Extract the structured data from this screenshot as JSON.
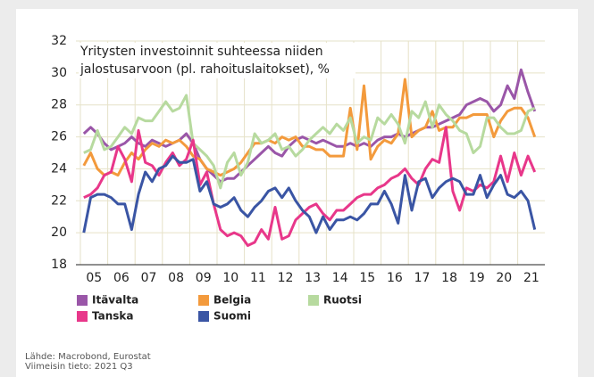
{
  "chart_data": {
    "type": "line",
    "title": [
      "Yritysten investoinnit suhteessa niiden",
      "jalostusarvoon (pl. rahoituslaitokset), %"
    ],
    "categories": [
      "05",
      null,
      null,
      null,
      "06",
      null,
      null,
      null,
      "07",
      null,
      null,
      null,
      "08",
      null,
      null,
      null,
      "09",
      null,
      null,
      null,
      "10",
      null,
      null,
      null,
      "11",
      null,
      null,
      null,
      "12",
      null,
      null,
      null,
      "13",
      null,
      null,
      null,
      "14",
      null,
      null,
      null,
      "15",
      null,
      null,
      null,
      "16",
      null,
      null,
      null,
      "17",
      null,
      null,
      null,
      "18",
      null,
      null,
      null,
      "19",
      null,
      null,
      null,
      "20",
      null,
      null,
      null,
      "21",
      null,
      null
    ],
    "ylim": [
      18,
      32
    ],
    "yticks": [
      18,
      20,
      22,
      24,
      26,
      28,
      30,
      32
    ],
    "grid": true,
    "series": [
      {
        "name": "Itävalta",
        "color": "#9a56a8",
        "values": [
          26.2,
          26.6,
          26.2,
          25.6,
          25.2,
          25.4,
          25.6,
          26,
          25.6,
          25.4,
          25.8,
          25.6,
          25.4,
          25.6,
          25.8,
          26.2,
          25.6,
          24.6,
          24,
          23.6,
          23.2,
          23.4,
          23.4,
          23.8,
          24.2,
          24.6,
          25,
          25.4,
          25,
          24.8,
          25.4,
          25.8,
          26,
          25.8,
          25.6,
          25.8,
          25.6,
          25.4,
          25.4,
          25.6,
          25.4,
          25.6,
          25.4,
          25.8,
          26,
          26,
          26.2,
          26,
          26.2,
          26.4,
          26.6,
          26.6,
          26.8,
          27,
          27.2,
          27.4,
          28,
          28.2,
          28.4,
          28.2,
          27.6,
          28,
          29.2,
          28.4,
          30.2,
          28.8,
          27.6
        ]
      },
      {
        "name": "Belgia",
        "color": "#f39a3c",
        "values": [
          24.2,
          25,
          24,
          23.6,
          23.8,
          23.6,
          24.4,
          25,
          24.6,
          25.2,
          25.6,
          25.4,
          25.8,
          25.6,
          25.8,
          25.4,
          24.8,
          24.6,
          24,
          23.8,
          23.6,
          23.8,
          24,
          24.4,
          25,
          25.6,
          25.6,
          25.8,
          25.6,
          26,
          25.8,
          26,
          25.4,
          25.4,
          25.2,
          25.2,
          24.8,
          24.8,
          24.8,
          27.8,
          25.2,
          29.2,
          24.6,
          25.4,
          25.8,
          25.6,
          26.2,
          29.6,
          26,
          26.4,
          26.6,
          27.6,
          26.4,
          26.6,
          26.6,
          27.2,
          27.2,
          27.4,
          27.4,
          27.4,
          26,
          27,
          27.6,
          27.8,
          27.8,
          27.2,
          26
        ]
      },
      {
        "name": "Ruotsi",
        "color": "#b7da9f",
        "values": [
          25,
          25.2,
          26.4,
          25.2,
          25.4,
          26,
          26.6,
          26.2,
          27.2,
          27,
          27,
          27.6,
          28.2,
          27.6,
          27.8,
          28.6,
          25.6,
          25.2,
          24.8,
          24.2,
          22.8,
          24.4,
          25,
          23.6,
          24.4,
          26.2,
          25.6,
          25.8,
          26.2,
          25.2,
          25.4,
          24.8,
          25.2,
          25.8,
          26.2,
          26.6,
          26.2,
          26.8,
          26.4,
          27.2,
          25.6,
          26,
          25.8,
          27.2,
          26.8,
          27.4,
          26.8,
          25.6,
          27.6,
          27.2,
          28.2,
          26.6,
          28,
          27.4,
          27,
          26.4,
          26.2,
          25,
          25.4,
          27.2,
          27.2,
          26.6,
          26.2,
          26.2,
          26.4,
          27.6,
          27.8
        ]
      },
      {
        "name": "Tanska",
        "color": "#e8378a",
        "values": [
          22.2,
          22.4,
          22.8,
          23.6,
          23.8,
          25.4,
          24.6,
          23.2,
          26.4,
          24.4,
          24.2,
          23.6,
          24.4,
          25,
          24.2,
          24.6,
          25.8,
          23,
          23.8,
          21.8,
          20.2,
          19.8,
          20,
          19.8,
          19.2,
          19.4,
          20.2,
          19.6,
          21.6,
          19.6,
          19.8,
          20.8,
          21.2,
          21.6,
          21.8,
          21.2,
          20.8,
          21.4,
          21.4,
          21.8,
          22.2,
          22.4,
          22.4,
          22.8,
          23,
          23.4,
          23.6,
          24,
          23.4,
          23,
          24,
          24.6,
          24.4,
          26.6,
          22.6,
          21.4,
          22.8,
          22.6,
          23,
          22.8,
          23.2,
          24.8,
          23.2,
          25,
          23.6,
          24.8,
          23.8
        ]
      },
      {
        "name": "Suomi",
        "color": "#3a55a4",
        "values": [
          20,
          22.2,
          22.4,
          22.4,
          22.2,
          21.8,
          21.8,
          20.2,
          22.4,
          23.8,
          23.2,
          24,
          24.2,
          24.8,
          24.4,
          24.4,
          24.6,
          22.6,
          23.2,
          21.8,
          21.6,
          21.8,
          22.2,
          21.4,
          21,
          21.6,
          22,
          22.6,
          22.8,
          22.2,
          22.8,
          22,
          21.4,
          21,
          20,
          21,
          20.2,
          20.8,
          20.8,
          21,
          20.8,
          21.2,
          21.8,
          21.8,
          22.6,
          21.8,
          20.6,
          23.6,
          21.4,
          23.2,
          23.4,
          22.2,
          22.8,
          23.2,
          23.4,
          23.2,
          22.4,
          22.4,
          23.6,
          22.2,
          23,
          23.6,
          22.4,
          22.2,
          22.6,
          22,
          20.2
        ]
      }
    ],
    "notes": [
      "Lähde: Macrobond, Eurostat",
      "Viimeisin tieto: 2021 Q3"
    ]
  }
}
